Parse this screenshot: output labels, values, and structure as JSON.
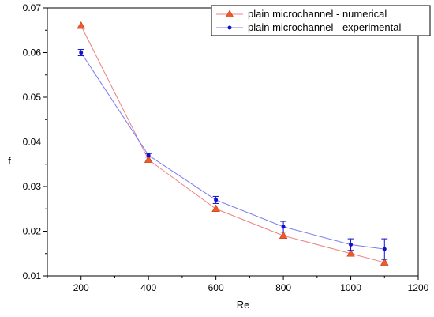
{
  "chart_data": {
    "type": "line",
    "xlabel": "Re",
    "ylabel": "f",
    "xlim": [
      100,
      1200
    ],
    "ylim": [
      0.01,
      0.07
    ],
    "x_ticks": [
      "200",
      "400",
      "600",
      "800",
      "1000",
      "1200"
    ],
    "y_ticks": [
      "0.01",
      "0.02",
      "0.03",
      "0.04",
      "0.05",
      "0.06",
      "0.07"
    ],
    "legend_position": "top-right",
    "grid": false,
    "series": [
      {
        "name": "plain microchannel - numerical",
        "color": "#f08080",
        "marker_color": "#f05a28",
        "marker": "triangle",
        "x": [
          200,
          400,
          600,
          800,
          1000,
          1100
        ],
        "y": [
          0.066,
          0.036,
          0.025,
          0.019,
          0.015,
          0.013
        ]
      },
      {
        "name": "plain microchannel - experimental",
        "color": "#7b7bf0",
        "marker_color": "#1010cc",
        "marker": "circle",
        "x": [
          200,
          400,
          600,
          800,
          1000,
          1100
        ],
        "y": [
          0.06,
          0.037,
          0.027,
          0.021,
          0.017,
          0.016
        ],
        "error": [
          0.0007,
          0.0004,
          0.0008,
          0.0012,
          0.0013,
          0.0023
        ]
      }
    ]
  }
}
